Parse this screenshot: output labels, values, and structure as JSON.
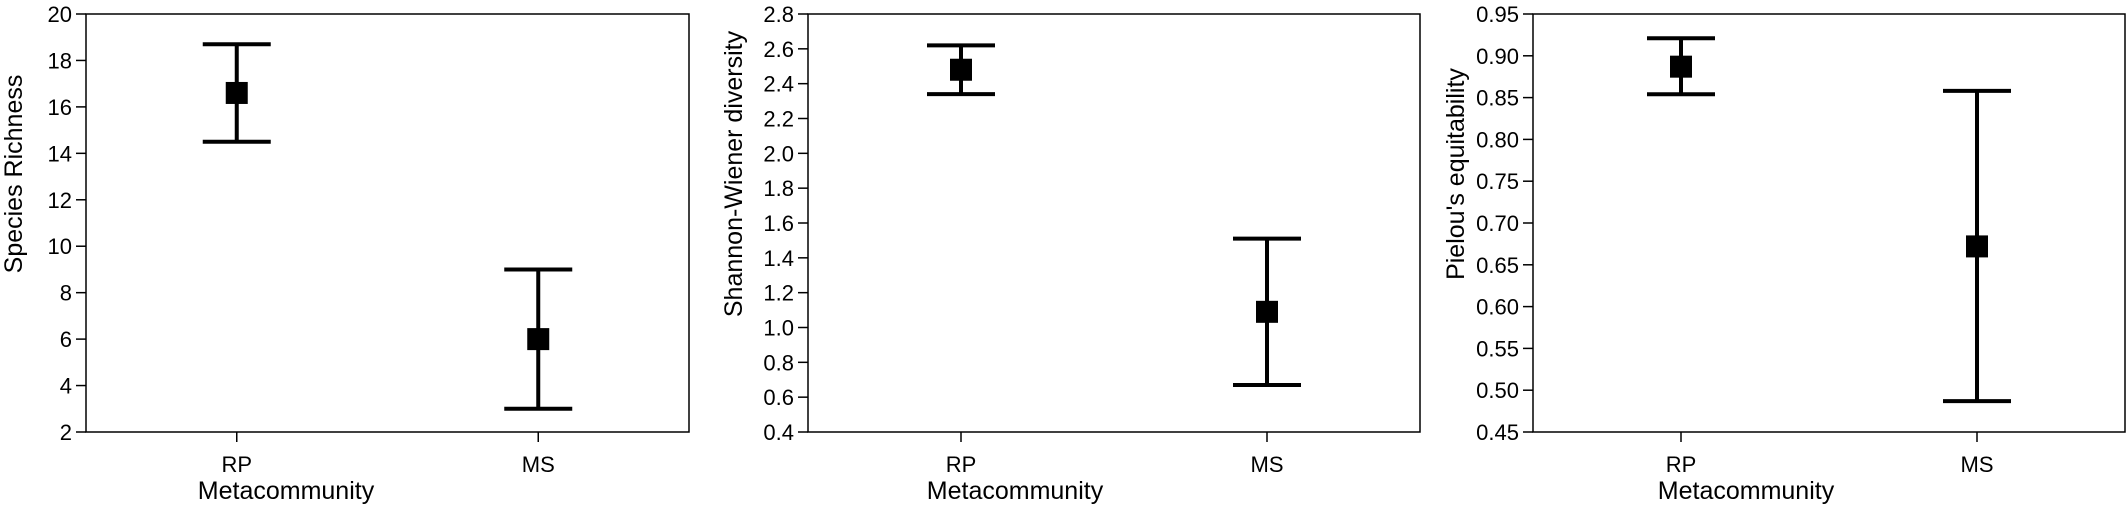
{
  "figure": {
    "panels": [
      {
        "xlabel": "Metacommunity",
        "ylabel": "Species Richness"
      },
      {
        "xlabel": "Metacommunity",
        "ylabel": "Shannon-Wiener diversity"
      },
      {
        "xlabel": "Metacommunity",
        "ylabel": "Pielou's equitability"
      }
    ]
  },
  "chart_data": [
    {
      "type": "scatter",
      "xlabel": "Metacommunity",
      "ylabel": "Species Richness",
      "categories": [
        "RP",
        "MS"
      ],
      "values": [
        16.6,
        6.0
      ],
      "error_low": [
        14.5,
        3.0
      ],
      "error_high": [
        18.7,
        9.0
      ],
      "ylim": [
        2,
        20
      ],
      "yticks": [
        "2",
        "4",
        "6",
        "8",
        "10",
        "12",
        "14",
        "16",
        "18",
        "20"
      ],
      "grid": false,
      "marker": "square",
      "color": "#000000"
    },
    {
      "type": "scatter",
      "xlabel": "Metacommunity",
      "ylabel": "Shannon-Wiener diversity",
      "categories": [
        "RP",
        "MS"
      ],
      "values": [
        2.48,
        1.09
      ],
      "error_low": [
        2.34,
        0.67
      ],
      "error_high": [
        2.62,
        1.51
      ],
      "ylim": [
        0.4,
        2.8
      ],
      "yticks": [
        "0.4",
        "0.6",
        "0.8",
        "1.0",
        "1.2",
        "1.4",
        "1.6",
        "1.8",
        "2.0",
        "2.2",
        "2.4",
        "2.6",
        "2.8"
      ],
      "grid": false,
      "marker": "square",
      "color": "#000000"
    },
    {
      "type": "scatter",
      "xlabel": "Metacommunity",
      "ylabel": "Pielou's equitability",
      "categories": [
        "RP",
        "MS"
      ],
      "values": [
        0.887,
        0.672
      ],
      "error_low": [
        0.854,
        0.487
      ],
      "error_high": [
        0.921,
        0.858
      ],
      "ylim": [
        0.45,
        0.95
      ],
      "yticks": [
        "0.45",
        "0.50",
        "0.55",
        "0.60",
        "0.65",
        "0.70",
        "0.75",
        "0.80",
        "0.85",
        "0.90",
        "0.95"
      ],
      "grid": false,
      "marker": "square",
      "color": "#000000"
    }
  ]
}
